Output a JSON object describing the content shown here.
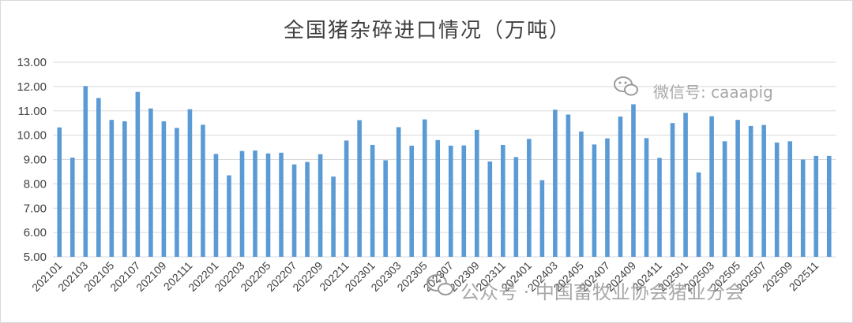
{
  "chart_data": {
    "type": "bar",
    "title": "全国猪杂碎进口情况（万吨）",
    "xlabel": "",
    "ylabel": "",
    "ylim": [
      5,
      13
    ],
    "yticks": [
      "5.00",
      "6.00",
      "7.00",
      "8.00",
      "9.00",
      "10.00",
      "11.00",
      "12.00",
      "13.00"
    ],
    "grid": "horizontal",
    "legend": "none",
    "bar_color": "#5b9bd5",
    "categories": [
      "202101",
      "202102",
      "202103",
      "202104",
      "202105",
      "202106",
      "202107",
      "202108",
      "202109",
      "202110",
      "202111",
      "202112",
      "202201",
      "202202",
      "202203",
      "202204",
      "202205",
      "202206",
      "202207",
      "202208",
      "202209",
      "202210",
      "202211",
      "202212",
      "202301",
      "202302",
      "202303",
      "202304",
      "202305",
      "202306",
      "202307",
      "202308",
      "202309",
      "202310",
      "202311",
      "202312",
      "202401",
      "202402",
      "202403",
      "202404",
      "202405",
      "202406",
      "202407",
      "202408",
      "202409",
      "202410",
      "202411",
      "202412",
      "202501",
      "202502",
      "202503",
      "202504",
      "202505",
      "202506",
      "202507",
      "202508",
      "202509",
      "202510",
      "202511",
      "202512"
    ],
    "xtick_labels_shown": [
      "202101",
      "202103",
      "202105",
      "202107",
      "202109",
      "202111",
      "202201",
      "202203",
      "202205",
      "202207",
      "202209",
      "202211",
      "202301",
      "202303",
      "202305",
      "202307",
      "202309",
      "202311",
      "202401",
      "202403",
      "202405",
      "202407",
      "202409",
      "202411",
      "202501",
      "202503",
      "202505",
      "202507",
      "202509",
      "202511"
    ],
    "values": [
      10.32,
      9.08,
      12.02,
      11.53,
      10.63,
      10.57,
      11.78,
      11.1,
      10.57,
      10.3,
      11.07,
      10.43,
      9.23,
      8.35,
      9.35,
      9.37,
      9.25,
      9.28,
      8.8,
      8.9,
      9.22,
      8.3,
      9.78,
      10.62,
      9.6,
      8.97,
      10.33,
      9.57,
      10.65,
      9.8,
      9.57,
      9.58,
      10.22,
      8.92,
      9.6,
      9.1,
      9.85,
      8.15,
      11.05,
      10.85,
      10.15,
      9.62,
      9.87,
      10.77,
      11.27,
      9.88,
      9.07,
      10.5,
      10.92,
      8.47,
      10.78,
      9.75,
      10.63,
      10.38,
      10.42,
      9.7,
      9.75,
      9.0,
      9.15,
      9.15
    ]
  },
  "watermarks": {
    "top_right": "微信号: caaapig",
    "bottom": "公众号 · 中国畜牧业协会猪业分会",
    "top_right_icon": "wechat-icon",
    "bottom_icon": "wechat-icon"
  }
}
